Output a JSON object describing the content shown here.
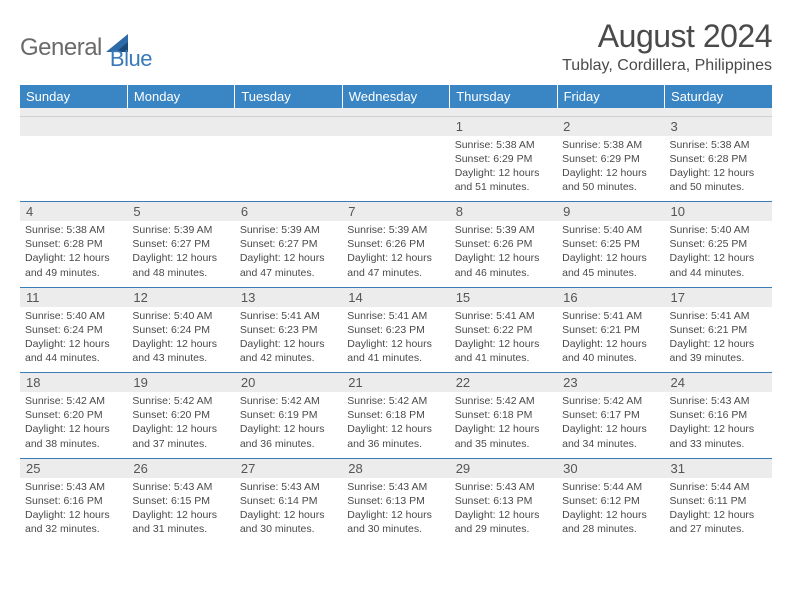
{
  "brand": {
    "part1": "General",
    "part2": "Blue"
  },
  "title": "August 2024",
  "location": "Tublay, Cordillera, Philippines",
  "colors": {
    "header_bg": "#3a85c4",
    "header_text": "#ffffff",
    "cell_border": "#3a7ab8",
    "numrow_bg": "#ececec",
    "body_text": "#4a4a4a",
    "logo_gray": "#6a6a6a",
    "logo_blue": "#3a7ab8"
  },
  "weekdays": [
    "Sunday",
    "Monday",
    "Tuesday",
    "Wednesday",
    "Thursday",
    "Friday",
    "Saturday"
  ],
  "weeks": [
    [
      null,
      null,
      null,
      null,
      {
        "n": "1",
        "sr": "5:38 AM",
        "ss": "6:29 PM",
        "dl": "12 hours and 51 minutes."
      },
      {
        "n": "2",
        "sr": "5:38 AM",
        "ss": "6:29 PM",
        "dl": "12 hours and 50 minutes."
      },
      {
        "n": "3",
        "sr": "5:38 AM",
        "ss": "6:28 PM",
        "dl": "12 hours and 50 minutes."
      }
    ],
    [
      {
        "n": "4",
        "sr": "5:38 AM",
        "ss": "6:28 PM",
        "dl": "12 hours and 49 minutes."
      },
      {
        "n": "5",
        "sr": "5:39 AM",
        "ss": "6:27 PM",
        "dl": "12 hours and 48 minutes."
      },
      {
        "n": "6",
        "sr": "5:39 AM",
        "ss": "6:27 PM",
        "dl": "12 hours and 47 minutes."
      },
      {
        "n": "7",
        "sr": "5:39 AM",
        "ss": "6:26 PM",
        "dl": "12 hours and 47 minutes."
      },
      {
        "n": "8",
        "sr": "5:39 AM",
        "ss": "6:26 PM",
        "dl": "12 hours and 46 minutes."
      },
      {
        "n": "9",
        "sr": "5:40 AM",
        "ss": "6:25 PM",
        "dl": "12 hours and 45 minutes."
      },
      {
        "n": "10",
        "sr": "5:40 AM",
        "ss": "6:25 PM",
        "dl": "12 hours and 44 minutes."
      }
    ],
    [
      {
        "n": "11",
        "sr": "5:40 AM",
        "ss": "6:24 PM",
        "dl": "12 hours and 44 minutes."
      },
      {
        "n": "12",
        "sr": "5:40 AM",
        "ss": "6:24 PM",
        "dl": "12 hours and 43 minutes."
      },
      {
        "n": "13",
        "sr": "5:41 AM",
        "ss": "6:23 PM",
        "dl": "12 hours and 42 minutes."
      },
      {
        "n": "14",
        "sr": "5:41 AM",
        "ss": "6:23 PM",
        "dl": "12 hours and 41 minutes."
      },
      {
        "n": "15",
        "sr": "5:41 AM",
        "ss": "6:22 PM",
        "dl": "12 hours and 41 minutes."
      },
      {
        "n": "16",
        "sr": "5:41 AM",
        "ss": "6:21 PM",
        "dl": "12 hours and 40 minutes."
      },
      {
        "n": "17",
        "sr": "5:41 AM",
        "ss": "6:21 PM",
        "dl": "12 hours and 39 minutes."
      }
    ],
    [
      {
        "n": "18",
        "sr": "5:42 AM",
        "ss": "6:20 PM",
        "dl": "12 hours and 38 minutes."
      },
      {
        "n": "19",
        "sr": "5:42 AM",
        "ss": "6:20 PM",
        "dl": "12 hours and 37 minutes."
      },
      {
        "n": "20",
        "sr": "5:42 AM",
        "ss": "6:19 PM",
        "dl": "12 hours and 36 minutes."
      },
      {
        "n": "21",
        "sr": "5:42 AM",
        "ss": "6:18 PM",
        "dl": "12 hours and 36 minutes."
      },
      {
        "n": "22",
        "sr": "5:42 AM",
        "ss": "6:18 PM",
        "dl": "12 hours and 35 minutes."
      },
      {
        "n": "23",
        "sr": "5:42 AM",
        "ss": "6:17 PM",
        "dl": "12 hours and 34 minutes."
      },
      {
        "n": "24",
        "sr": "5:43 AM",
        "ss": "6:16 PM",
        "dl": "12 hours and 33 minutes."
      }
    ],
    [
      {
        "n": "25",
        "sr": "5:43 AM",
        "ss": "6:16 PM",
        "dl": "12 hours and 32 minutes."
      },
      {
        "n": "26",
        "sr": "5:43 AM",
        "ss": "6:15 PM",
        "dl": "12 hours and 31 minutes."
      },
      {
        "n": "27",
        "sr": "5:43 AM",
        "ss": "6:14 PM",
        "dl": "12 hours and 30 minutes."
      },
      {
        "n": "28",
        "sr": "5:43 AM",
        "ss": "6:13 PM",
        "dl": "12 hours and 30 minutes."
      },
      {
        "n": "29",
        "sr": "5:43 AM",
        "ss": "6:13 PM",
        "dl": "12 hours and 29 minutes."
      },
      {
        "n": "30",
        "sr": "5:44 AM",
        "ss": "6:12 PM",
        "dl": "12 hours and 28 minutes."
      },
      {
        "n": "31",
        "sr": "5:44 AM",
        "ss": "6:11 PM",
        "dl": "12 hours and 27 minutes."
      }
    ]
  ],
  "labels": {
    "sunrise": "Sunrise:",
    "sunset": "Sunset:",
    "daylight": "Daylight:"
  }
}
